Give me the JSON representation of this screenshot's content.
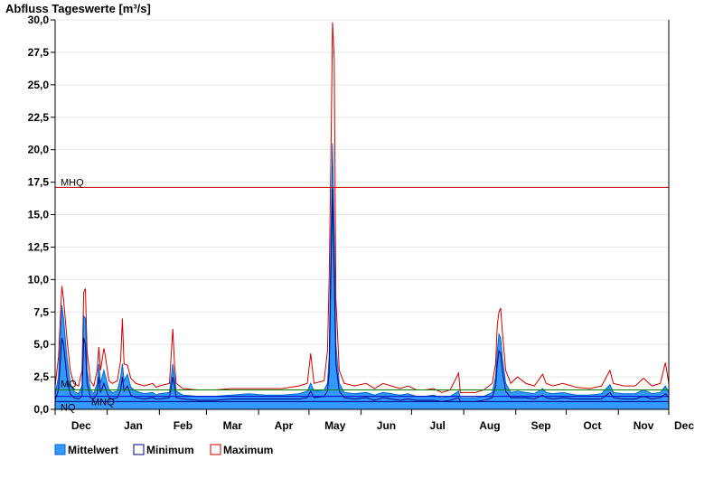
{
  "chart_data": {
    "type": "area",
    "title": "Abfluss Tageswerte [m³/s]",
    "xlabel": "",
    "ylabel": "",
    "ylim": [
      0,
      30
    ],
    "yticks": [
      "0,0",
      "2,5",
      "5,0",
      "7,5",
      "10,0",
      "12,5",
      "15,0",
      "17,5",
      "20,0",
      "22,5",
      "25,0",
      "27,5",
      "30,0"
    ],
    "ytick_values": [
      0,
      2.5,
      5,
      7.5,
      10,
      12.5,
      15,
      17.5,
      20,
      22.5,
      25,
      27.5,
      30
    ],
    "xlim_days": [
      0,
      365
    ],
    "months": [
      "Dec",
      "Jan",
      "Feb",
      "Mar",
      "Apr",
      "May",
      "Jun",
      "Jul",
      "Aug",
      "Sep",
      "Oct",
      "Nov",
      "Dec"
    ],
    "month_days": [
      0,
      31,
      62,
      90,
      121,
      151,
      182,
      212,
      243,
      274,
      304,
      335,
      365
    ],
    "grid": true,
    "reference_lines": [
      {
        "label": "MHQ",
        "value": 17.1,
        "color": "#cc0000"
      },
      {
        "label": "MQ",
        "value": 1.5,
        "color": "#008000"
      },
      {
        "label": "MNQ",
        "value": 1.0,
        "color": "#0000cc"
      },
      {
        "label": "NQ",
        "value": 0.6,
        "color": "#000080"
      }
    ],
    "legend_position": "bottom-left",
    "series": [
      {
        "name": "Mittelwert",
        "color": "#3399ff",
        "points": [
          [
            0,
            1.2
          ],
          [
            2,
            2.5
          ],
          [
            4,
            8.0
          ],
          [
            5,
            7.0
          ],
          [
            7,
            4.0
          ],
          [
            9,
            2.0
          ],
          [
            11,
            1.4
          ],
          [
            14,
            1.2
          ],
          [
            16,
            1.8
          ],
          [
            17,
            7.2
          ],
          [
            18,
            7.0
          ],
          [
            19,
            3.0
          ],
          [
            21,
            1.5
          ],
          [
            23,
            1.2
          ],
          [
            25,
            2.0
          ],
          [
            26,
            3.5
          ],
          [
            27,
            2.0
          ],
          [
            29,
            3.0
          ],
          [
            30,
            2.5
          ],
          [
            32,
            1.5
          ],
          [
            34,
            1.3
          ],
          [
            37,
            1.4
          ],
          [
            39,
            2.5
          ],
          [
            40,
            3.5
          ],
          [
            41,
            2.2
          ],
          [
            43,
            2.7
          ],
          [
            45,
            1.7
          ],
          [
            48,
            1.4
          ],
          [
            53,
            1.2
          ],
          [
            58,
            1.3
          ],
          [
            60,
            1.1
          ],
          [
            62,
            1.2
          ],
          [
            68,
            1.3
          ],
          [
            70,
            3.5
          ],
          [
            71,
            2.5
          ],
          [
            72,
            1.4
          ],
          [
            76,
            1.1
          ],
          [
            85,
            1.0
          ],
          [
            95,
            1.0
          ],
          [
            105,
            1.1
          ],
          [
            115,
            1.2
          ],
          [
            125,
            1.1
          ],
          [
            135,
            1.1
          ],
          [
            145,
            1.2
          ],
          [
            150,
            1.4
          ],
          [
            152,
            2.0
          ],
          [
            154,
            1.4
          ],
          [
            160,
            1.5
          ],
          [
            162,
            2.0
          ],
          [
            163,
            4.0
          ],
          [
            164,
            13.0
          ],
          [
            165,
            20.5
          ],
          [
            166,
            13.5
          ],
          [
            167,
            5.0
          ],
          [
            169,
            2.0
          ],
          [
            172,
            1.3
          ],
          [
            178,
            1.2
          ],
          [
            185,
            1.3
          ],
          [
            190,
            1.1
          ],
          [
            195,
            1.3
          ],
          [
            200,
            1.2
          ],
          [
            205,
            1.1
          ],
          [
            210,
            1.2
          ],
          [
            215,
            1.0
          ],
          [
            220,
            1.0
          ],
          [
            225,
            1.1
          ],
          [
            230,
            0.9
          ],
          [
            235,
            1.0
          ],
          [
            240,
            1.4
          ],
          [
            241,
            0.9
          ],
          [
            245,
            0.9
          ],
          [
            250,
            0.9
          ],
          [
            255,
            1.0
          ],
          [
            260,
            1.3
          ],
          [
            262,
            2.5
          ],
          [
            263,
            4.5
          ],
          [
            264,
            5.8
          ],
          [
            265,
            5.5
          ],
          [
            266,
            4.0
          ],
          [
            268,
            2.0
          ],
          [
            271,
            1.3
          ],
          [
            275,
            1.4
          ],
          [
            280,
            1.3
          ],
          [
            285,
            1.2
          ],
          [
            290,
            1.6
          ],
          [
            292,
            1.3
          ],
          [
            296,
            1.2
          ],
          [
            302,
            1.3
          ],
          [
            310,
            1.1
          ],
          [
            318,
            1.1
          ],
          [
            325,
            1.2
          ],
          [
            330,
            1.9
          ],
          [
            332,
            1.3
          ],
          [
            338,
            1.2
          ],
          [
            345,
            1.2
          ],
          [
            350,
            1.5
          ],
          [
            355,
            1.2
          ],
          [
            360,
            1.3
          ],
          [
            363,
            1.8
          ],
          [
            365,
            1.3
          ]
        ]
      },
      {
        "name": "Minimum",
        "color": "#000080",
        "points": [
          [
            0,
            0.7
          ],
          [
            2,
            1.5
          ],
          [
            4,
            5.5
          ],
          [
            5,
            5.0
          ],
          [
            7,
            2.5
          ],
          [
            9,
            1.2
          ],
          [
            11,
            0.9
          ],
          [
            14,
            0.8
          ],
          [
            16,
            1.0
          ],
          [
            17,
            5.5
          ],
          [
            18,
            5.0
          ],
          [
            19,
            2.0
          ],
          [
            21,
            0.9
          ],
          [
            23,
            0.8
          ],
          [
            25,
            1.2
          ],
          [
            26,
            2.5
          ],
          [
            27,
            1.3
          ],
          [
            29,
            2.0
          ],
          [
            30,
            1.6
          ],
          [
            32,
            0.9
          ],
          [
            34,
            0.8
          ],
          [
            37,
            0.9
          ],
          [
            39,
            1.5
          ],
          [
            40,
            2.5
          ],
          [
            41,
            1.4
          ],
          [
            43,
            1.8
          ],
          [
            45,
            1.1
          ],
          [
            48,
            0.9
          ],
          [
            53,
            0.8
          ],
          [
            58,
            0.9
          ],
          [
            60,
            0.8
          ],
          [
            62,
            0.8
          ],
          [
            68,
            0.9
          ],
          [
            70,
            2.5
          ],
          [
            71,
            1.8
          ],
          [
            72,
            0.9
          ],
          [
            76,
            0.8
          ],
          [
            85,
            0.7
          ],
          [
            95,
            0.7
          ],
          [
            105,
            0.8
          ],
          [
            115,
            0.8
          ],
          [
            125,
            0.8
          ],
          [
            135,
            0.8
          ],
          [
            145,
            0.8
          ],
          [
            150,
            0.9
          ],
          [
            152,
            1.4
          ],
          [
            154,
            0.9
          ],
          [
            160,
            1.0
          ],
          [
            162,
            1.4
          ],
          [
            163,
            2.8
          ],
          [
            164,
            10.0
          ],
          [
            165,
            17.0
          ],
          [
            166,
            10.5
          ],
          [
            167,
            3.5
          ],
          [
            169,
            1.4
          ],
          [
            172,
            0.9
          ],
          [
            178,
            0.8
          ],
          [
            185,
            0.9
          ],
          [
            190,
            0.7
          ],
          [
            195,
            0.9
          ],
          [
            200,
            0.8
          ],
          [
            205,
            0.7
          ],
          [
            210,
            0.8
          ],
          [
            215,
            0.7
          ],
          [
            220,
            0.7
          ],
          [
            225,
            0.7
          ],
          [
            230,
            0.6
          ],
          [
            235,
            0.7
          ],
          [
            240,
            0.9
          ],
          [
            241,
            0.6
          ],
          [
            245,
            0.6
          ],
          [
            250,
            0.6
          ],
          [
            255,
            0.7
          ],
          [
            260,
            0.9
          ],
          [
            262,
            1.8
          ],
          [
            263,
            3.5
          ],
          [
            264,
            4.5
          ],
          [
            265,
            4.3
          ],
          [
            266,
            3.0
          ],
          [
            268,
            1.4
          ],
          [
            271,
            0.9
          ],
          [
            275,
            0.9
          ],
          [
            280,
            0.9
          ],
          [
            285,
            0.8
          ],
          [
            290,
            1.1
          ],
          [
            292,
            0.9
          ],
          [
            296,
            0.8
          ],
          [
            302,
            0.9
          ],
          [
            310,
            0.8
          ],
          [
            318,
            0.8
          ],
          [
            325,
            0.8
          ],
          [
            330,
            1.3
          ],
          [
            332,
            0.9
          ],
          [
            338,
            0.8
          ],
          [
            345,
            0.8
          ],
          [
            350,
            1.0
          ],
          [
            355,
            0.8
          ],
          [
            360,
            0.9
          ],
          [
            363,
            1.2
          ],
          [
            365,
            0.9
          ]
        ]
      },
      {
        "name": "Maximum",
        "color": "#cc0000",
        "points": [
          [
            0,
            1.8
          ],
          [
            2,
            4.0
          ],
          [
            4,
            9.5
          ],
          [
            5,
            8.5
          ],
          [
            7,
            5.5
          ],
          [
            9,
            3.0
          ],
          [
            11,
            2.0
          ],
          [
            14,
            1.8
          ],
          [
            16,
            3.0
          ],
          [
            17,
            9.0
          ],
          [
            18,
            9.3
          ],
          [
            19,
            4.5
          ],
          [
            21,
            2.2
          ],
          [
            23,
            1.8
          ],
          [
            25,
            3.0
          ],
          [
            26,
            4.8
          ],
          [
            27,
            3.0
          ],
          [
            29,
            4.7
          ],
          [
            30,
            4.0
          ],
          [
            32,
            2.2
          ],
          [
            34,
            2.0
          ],
          [
            37,
            2.2
          ],
          [
            39,
            3.8
          ],
          [
            40,
            7.0
          ],
          [
            41,
            3.5
          ],
          [
            43,
            3.4
          ],
          [
            45,
            2.4
          ],
          [
            48,
            2.0
          ],
          [
            53,
            1.8
          ],
          [
            58,
            2.0
          ],
          [
            60,
            1.7
          ],
          [
            62,
            1.8
          ],
          [
            68,
            2.0
          ],
          [
            70,
            6.2
          ],
          [
            71,
            3.5
          ],
          [
            72,
            2.0
          ],
          [
            76,
            1.6
          ],
          [
            85,
            1.5
          ],
          [
            95,
            1.5
          ],
          [
            105,
            1.6
          ],
          [
            115,
            1.6
          ],
          [
            125,
            1.6
          ],
          [
            135,
            1.6
          ],
          [
            145,
            1.8
          ],
          [
            150,
            2.0
          ],
          [
            152,
            4.3
          ],
          [
            154,
            2.0
          ],
          [
            160,
            2.2
          ],
          [
            162,
            4.5
          ],
          [
            163,
            10.0
          ],
          [
            164,
            19.0
          ],
          [
            165,
            29.8
          ],
          [
            166,
            27.0
          ],
          [
            167,
            8.5
          ],
          [
            169,
            3.0
          ],
          [
            172,
            2.0
          ],
          [
            178,
            1.8
          ],
          [
            185,
            2.0
          ],
          [
            190,
            1.6
          ],
          [
            195,
            2.0
          ],
          [
            200,
            1.8
          ],
          [
            205,
            1.6
          ],
          [
            210,
            1.8
          ],
          [
            215,
            1.5
          ],
          [
            220,
            1.5
          ],
          [
            225,
            1.6
          ],
          [
            230,
            1.3
          ],
          [
            235,
            1.5
          ],
          [
            240,
            2.8
          ],
          [
            241,
            1.3
          ],
          [
            245,
            1.3
          ],
          [
            250,
            1.3
          ],
          [
            255,
            1.5
          ],
          [
            260,
            2.0
          ],
          [
            262,
            3.5
          ],
          [
            263,
            6.5
          ],
          [
            264,
            7.5
          ],
          [
            265,
            7.8
          ],
          [
            266,
            6.0
          ],
          [
            268,
            3.0
          ],
          [
            271,
            2.0
          ],
          [
            275,
            2.5
          ],
          [
            280,
            2.0
          ],
          [
            285,
            1.8
          ],
          [
            290,
            2.7
          ],
          [
            292,
            2.0
          ],
          [
            296,
            1.8
          ],
          [
            302,
            2.0
          ],
          [
            310,
            1.7
          ],
          [
            318,
            1.6
          ],
          [
            325,
            1.8
          ],
          [
            330,
            3.0
          ],
          [
            332,
            2.0
          ],
          [
            338,
            1.8
          ],
          [
            345,
            1.8
          ],
          [
            350,
            2.4
          ],
          [
            355,
            1.8
          ],
          [
            360,
            2.0
          ],
          [
            363,
            3.6
          ],
          [
            365,
            2.0
          ]
        ]
      }
    ]
  }
}
